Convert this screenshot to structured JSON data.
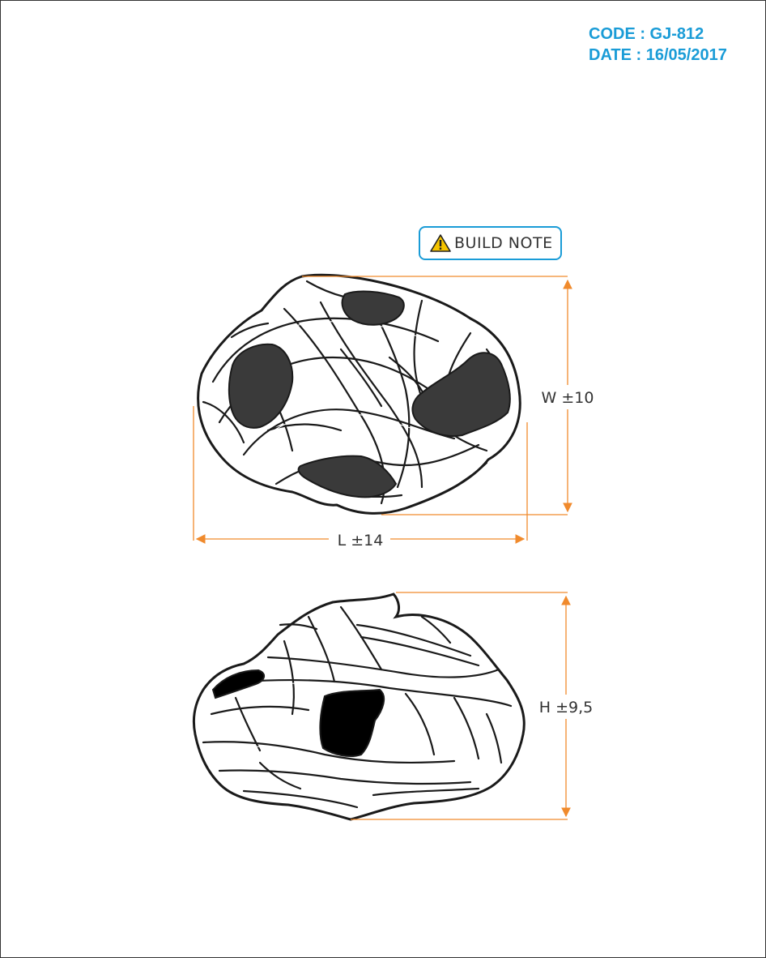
{
  "header": {
    "code": "CODE : GJ-812",
    "date": "DATE : 16/05/2017"
  },
  "build_note": {
    "label": "BUILD NOTE",
    "icon": "warning-triangle-icon"
  },
  "dimensions": {
    "width": "W ±10",
    "length": "L ±14",
    "height": "H ±9,5"
  },
  "colors": {
    "accent": "#1a9cd7",
    "dimension_line": "#f08a2c",
    "warning_yellow": "#f5c400",
    "outline": "#1a1a1a",
    "dark_fill": "#3a3a3a"
  }
}
